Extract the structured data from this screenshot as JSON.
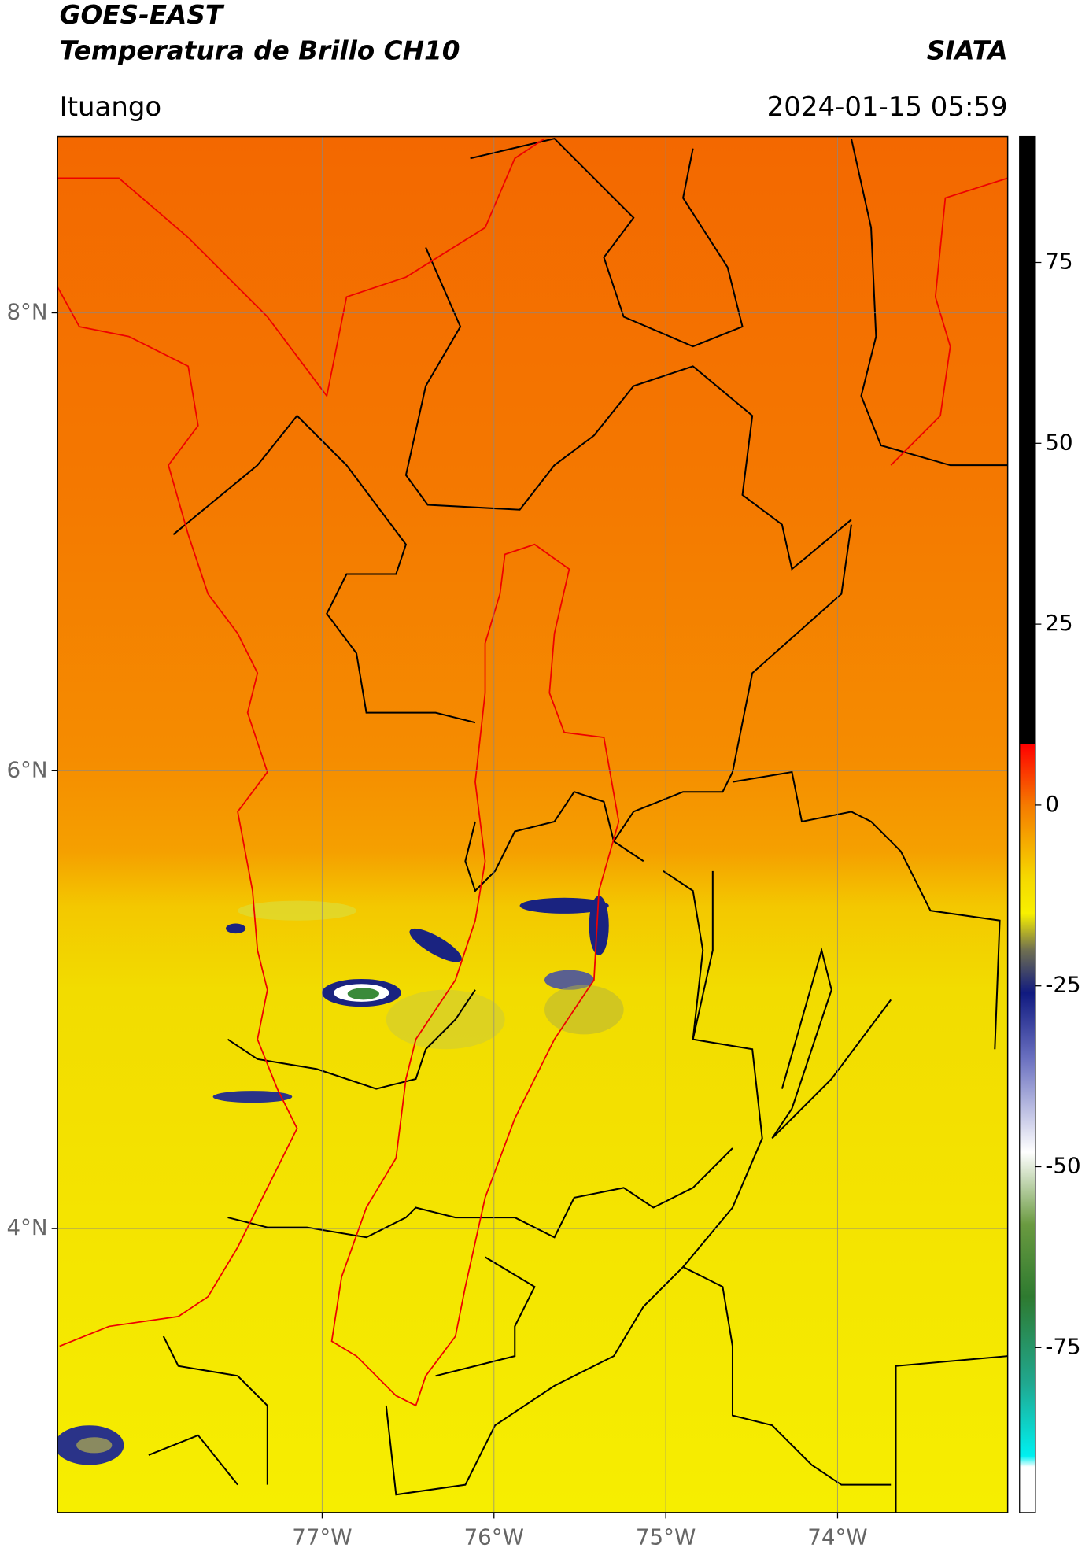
{
  "header": {
    "title": "GOES-EAST",
    "subtitle": "Temperatura de Brillo CH10",
    "brand": "SIATA",
    "location": "Ituango",
    "timestamp": "2024-01-15 05:59"
  },
  "chart_data": {
    "type": "map",
    "xlim": [
      -78.54,
      -73.01
    ],
    "ylim": [
      2.76,
      8.77
    ],
    "xticks": [
      {
        "value": -77,
        "label": "77°W"
      },
      {
        "value": -76,
        "label": "76°W"
      },
      {
        "value": -75,
        "label": "75°W"
      },
      {
        "value": -74,
        "label": "74°W"
      }
    ],
    "yticks": [
      {
        "value": 8,
        "label": "8°N"
      },
      {
        "value": 6,
        "label": "6°N"
      },
      {
        "value": 4,
        "label": "4°N"
      }
    ],
    "grid": true,
    "colorbar": {
      "lim": [
        -97.8,
        92.4
      ],
      "ticks": [
        75,
        50,
        25,
        0,
        -25,
        -50,
        -75
      ],
      "colormap": [
        {
          "value": 92.4,
          "color": "#000000"
        },
        {
          "value": 8.5,
          "color": "#000000"
        },
        {
          "value": 8.4,
          "color": "#ff0000"
        },
        {
          "value": 0,
          "color": "#f57a00"
        },
        {
          "value": -10,
          "color": "#f5d800"
        },
        {
          "value": -15,
          "color": "#f8f000"
        },
        {
          "value": -20,
          "color": "#707050"
        },
        {
          "value": -26,
          "color": "#101a80"
        },
        {
          "value": -35,
          "color": "#6a70c0"
        },
        {
          "value": -48,
          "color": "#ffffff"
        },
        {
          "value": -58,
          "color": "#6a9a40"
        },
        {
          "value": -68,
          "color": "#2e7a30"
        },
        {
          "value": -80,
          "color": "#20a890"
        },
        {
          "value": -90,
          "color": "#00f0f0"
        },
        {
          "value": -91.5,
          "color": "#ffffff"
        },
        {
          "value": -97.8,
          "color": "#ffffff"
        }
      ]
    }
  }
}
